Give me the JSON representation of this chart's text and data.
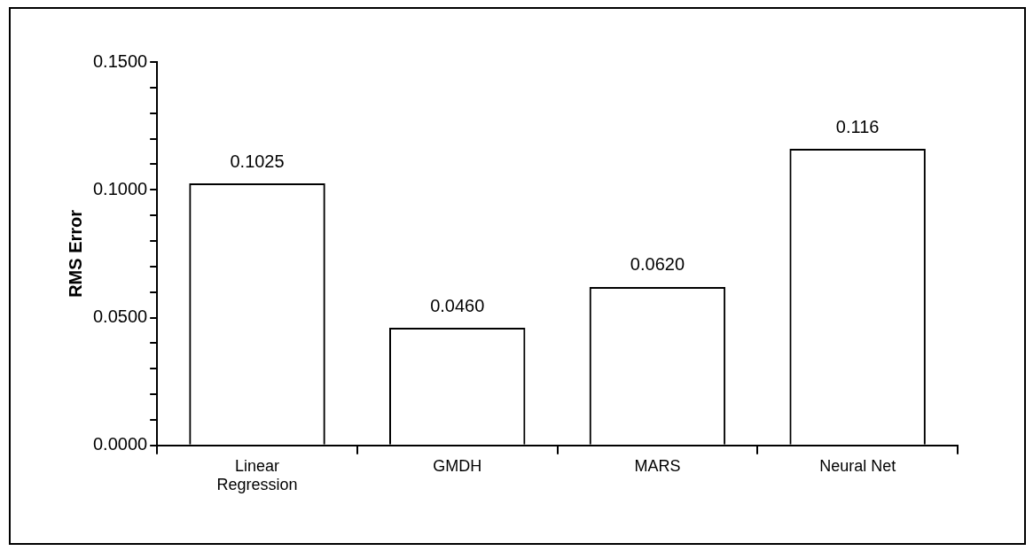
{
  "chart_data": {
    "type": "bar",
    "ylabel": "RMS Error",
    "categories": [
      "Linear Regression",
      "GMDH",
      "MARS",
      "Neural Net"
    ],
    "values": [
      0.1025,
      0.046,
      0.062,
      0.116
    ],
    "value_labels": [
      "0.1025",
      "0.0460",
      "0.0620",
      "0.116"
    ],
    "color": "#000000",
    "ylim": [
      0,
      0.15
    ],
    "yticks": [
      {
        "value": 0,
        "label": "0.0000"
      },
      {
        "value": 0.01,
        "label": null
      },
      {
        "value": 0.02,
        "label": null
      },
      {
        "value": 0.03,
        "label": null
      },
      {
        "value": 0.04,
        "label": null
      },
      {
        "value": 0.05,
        "label": "0.0500"
      },
      {
        "value": 0.06,
        "label": null
      },
      {
        "value": 0.07,
        "label": null
      },
      {
        "value": 0.08,
        "label": null
      },
      {
        "value": 0.09,
        "label": null
      },
      {
        "value": 0.1,
        "label": "0.1000"
      },
      {
        "value": 0.11,
        "label": null
      },
      {
        "value": 0.12,
        "label": null
      },
      {
        "value": 0.13,
        "label": null
      },
      {
        "value": 0.14,
        "label": null
      },
      {
        "value": 0.15,
        "label": "0.1500"
      }
    ],
    "grid": false,
    "legend": false
  }
}
